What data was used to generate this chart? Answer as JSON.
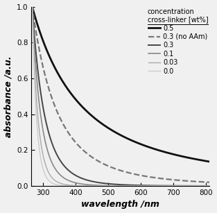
{
  "title": "",
  "xlabel": "wavelength /nm",
  "ylabel": "absorbance /a.u.",
  "xlim": [
    265,
    810
  ],
  "ylim": [
    0.0,
    1.0
  ],
  "xticks": [
    300,
    400,
    500,
    600,
    700,
    800
  ],
  "yticks": [
    0.0,
    0.2,
    0.4,
    0.6,
    0.8,
    1.0
  ],
  "legend_title": "concentration\ncross-linker [wt%]",
  "series": [
    {
      "label": "0.5",
      "color": "#111111",
      "linestyle": "solid",
      "linewidth": 2.0,
      "type": "power",
      "A": 1.0,
      "lam0": 267.0,
      "alpha": 1.8
    },
    {
      "label": "0.3 (no AAm)",
      "color": "#777777",
      "linestyle": "dashed",
      "linewidth": 1.6,
      "type": "power",
      "A": 1.0,
      "lam0": 267.0,
      "alpha": 3.5
    },
    {
      "label": "0.3",
      "color": "#444444",
      "linestyle": "solid",
      "linewidth": 1.4,
      "type": "power",
      "A": 1.0,
      "lam0": 267.0,
      "alpha": 7.0
    },
    {
      "label": "0.1",
      "color": "#888888",
      "linestyle": "solid",
      "linewidth": 1.2,
      "type": "power",
      "A": 1.0,
      "lam0": 267.0,
      "alpha": 10.0
    },
    {
      "label": "0.03",
      "color": "#aaaaaa",
      "linestyle": "solid",
      "linewidth": 1.0,
      "type": "power",
      "A": 1.0,
      "lam0": 267.0,
      "alpha": 15.0
    },
    {
      "label": "0.0",
      "color": "#cccccc",
      "linestyle": "solid",
      "linewidth": 1.0,
      "type": "power",
      "A": 1.0,
      "lam0": 267.0,
      "alpha": 20.0
    }
  ],
  "background_color": "#f0f0f0",
  "legend_fontsize": 7.0,
  "axis_fontsize": 9,
  "tick_fontsize": 7.5
}
